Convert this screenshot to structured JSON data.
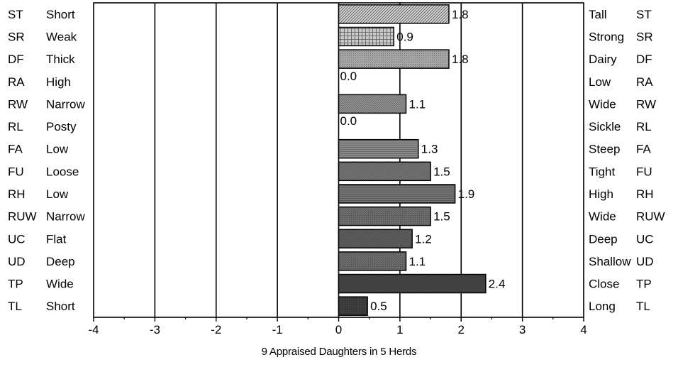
{
  "chart_data": {
    "type": "bar",
    "orientation": "horizontal",
    "xlabel": "9 Appraised Daughters in 5 Herds",
    "xlim": [
      -4,
      4
    ],
    "xticks": [
      "-4",
      "-3",
      "-2",
      "-1",
      "0",
      "1",
      "2",
      "3",
      "4"
    ],
    "grid": true,
    "traits": [
      {
        "code": "ST",
        "low": "Short",
        "high": "Tall",
        "value": 1.8,
        "label": "1.8",
        "color": "#d2d2d2",
        "pattern": "diag-fine"
      },
      {
        "code": "SR",
        "low": "Weak",
        "high": "Strong",
        "value": 0.9,
        "label": "0.9",
        "color": "#c9c9c9",
        "pattern": "grid"
      },
      {
        "code": "DF",
        "low": "Thick",
        "high": "Dairy",
        "value": 1.8,
        "label": "1.8",
        "color": "#a4a4a4",
        "pattern": "dots"
      },
      {
        "code": "RA",
        "low": "High",
        "high": "Low",
        "value": 0.0,
        "label": "0.0",
        "color": "#9a9a9a",
        "pattern": "dots"
      },
      {
        "code": "RW",
        "low": "Narrow",
        "high": "Wide",
        "value": 1.1,
        "label": "1.1",
        "color": "#959595",
        "pattern": "diag"
      },
      {
        "code": "RL",
        "low": "Posty",
        "high": "Sickle",
        "value": 0.0,
        "label": "0.0",
        "color": "#8e8e8e",
        "pattern": "dots"
      },
      {
        "code": "FA",
        "low": "Low",
        "high": "Steep",
        "value": 1.3,
        "label": "1.3",
        "color": "#8a8a8a",
        "pattern": "hlines"
      },
      {
        "code": "FU",
        "low": "Loose",
        "high": "Tight",
        "value": 1.5,
        "label": "1.5",
        "color": "#7a7a7a",
        "pattern": "diag"
      },
      {
        "code": "RH",
        "low": "Low",
        "high": "High",
        "value": 1.9,
        "label": "1.9",
        "color": "#737373",
        "pattern": "hlines"
      },
      {
        "code": "RUW",
        "low": "Narrow",
        "high": "Wide",
        "value": 1.5,
        "label": "1.5",
        "color": "#6b6b6b",
        "pattern": "dots"
      },
      {
        "code": "UC",
        "low": "Flat",
        "high": "Deep",
        "value": 1.2,
        "label": "1.2",
        "color": "#636363",
        "pattern": "diag"
      },
      {
        "code": "UD",
        "low": "Deep",
        "high": "Shallow",
        "value": 1.1,
        "label": "1.1",
        "color": "#6a6a6a",
        "pattern": "dots"
      },
      {
        "code": "TP",
        "low": "Wide",
        "high": "Close",
        "value": 2.4,
        "label": "2.4",
        "color": "#4a4a4a",
        "pattern": "diag"
      },
      {
        "code": "TL",
        "low": "Short",
        "high": "Long",
        "value": 0.47,
        "label": "0.5",
        "color": "#3e3e3e",
        "pattern": "dots"
      }
    ]
  }
}
